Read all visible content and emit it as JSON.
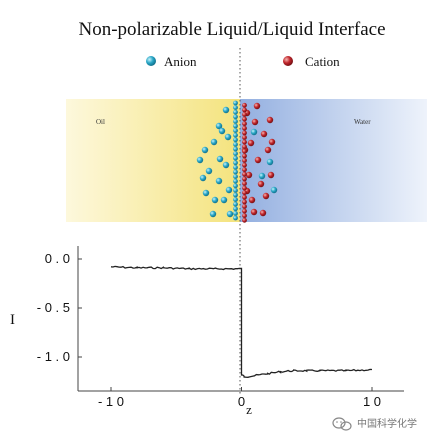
{
  "title": "Non-polarizable Liquid/Liquid Interface",
  "legend": {
    "anion_label": "Anion",
    "cation_label": "Cation",
    "anion_color": "#2aa7c7",
    "cation_color": "#c0262c"
  },
  "phases": {
    "oil_label": "Oil",
    "water_label": "Water",
    "oil_color": "#f7e88a",
    "water_color": "#9cb6e2"
  },
  "watermark": {
    "icon": "wechat-logo-icon",
    "text": "中国科学化学"
  },
  "chart_data": {
    "type": "line",
    "xlabel": "z",
    "ylabel": "I",
    "xlim": [
      -10,
      10
    ],
    "ylim": [
      -1.3,
      0.12
    ],
    "x_ticks": [
      -10,
      0,
      10
    ],
    "x_tick_labels": [
      "- 1 0",
      "0",
      "1 0"
    ],
    "y_ticks": [
      0.0,
      -0.5,
      -1.0
    ],
    "y_tick_labels": [
      "0 . 0",
      "- 0 . 5",
      "- 1 . 0"
    ],
    "grid": false,
    "series": [
      {
        "x": [
          -10,
          -8,
          -6,
          -4,
          -2,
          0,
          0,
          0.2,
          0.5,
          1,
          2,
          3,
          4,
          5,
          6,
          8,
          10
        ],
        "y": [
          -0.08,
          -0.09,
          -0.09,
          -0.1,
          -0.1,
          -0.1,
          -1.18,
          -1.2,
          -1.2,
          -1.19,
          -1.17,
          -1.15,
          -1.14,
          -1.14,
          -1.14,
          -1.14,
          -1.13
        ],
        "color": "#222222"
      }
    ]
  }
}
